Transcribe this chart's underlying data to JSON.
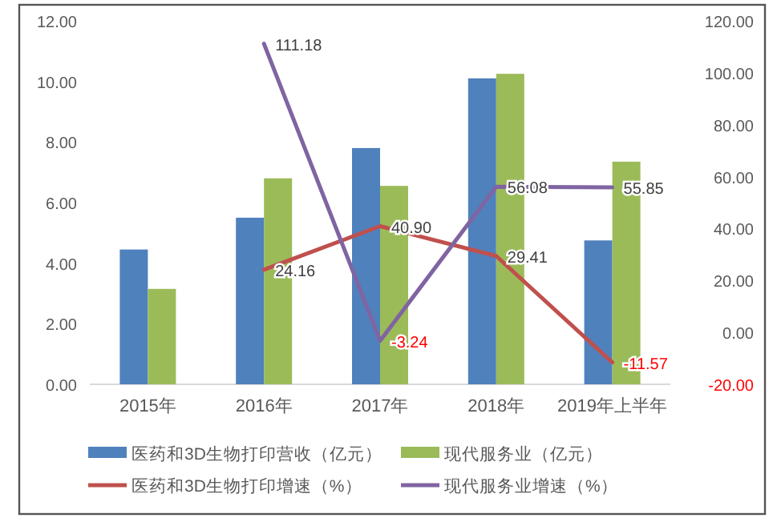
{
  "chart_data": {
    "type": "bar",
    "categories": [
      "2015年",
      "2016年",
      "2017年",
      "2018年",
      "2019年上半年"
    ],
    "series": [
      {
        "name": "医药和3D生物打印营收（亿元）",
        "color": "#4f81bd",
        "values": [
          4.45,
          5.5,
          7.8,
          10.1,
          4.75
        ]
      },
      {
        "name": "现代服务业（亿元）",
        "color": "#9bbb59",
        "values": [
          3.15,
          6.8,
          6.55,
          10.25,
          7.35
        ]
      },
      {
        "name": "医药和3D生物打印增速（%）",
        "type": "line",
        "axis": "y2",
        "color": "#c0504d",
        "values": [
          null,
          24.16,
          40.9,
          29.41,
          -11.57
        ],
        "value_labels": [
          null,
          "24.16",
          "40.90",
          "29.41",
          "-11.57"
        ]
      },
      {
        "name": "现代服务业增速（%）",
        "type": "line",
        "axis": "y2",
        "color": "#8064a2",
        "values": [
          null,
          111.18,
          -3.24,
          56.08,
          55.85
        ],
        "value_labels": [
          null,
          "111.18",
          "-3.24",
          "56.08",
          "55.85"
        ]
      }
    ],
    "ylim": [
      0,
      12
    ],
    "yticks": [
      {
        "value": 0,
        "label": "0.00"
      },
      {
        "value": 2,
        "label": "2.00"
      },
      {
        "value": 4,
        "label": "4.00"
      },
      {
        "value": 6,
        "label": "6.00"
      },
      {
        "value": 8,
        "label": "8.00"
      },
      {
        "value": 10,
        "label": "10.00"
      },
      {
        "value": 12,
        "label": "12.00"
      }
    ],
    "y2lim": [
      -20,
      120
    ],
    "y2ticks": [
      {
        "value": -20,
        "label": "-20.00"
      },
      {
        "value": 0,
        "label": "0.00"
      },
      {
        "value": 20,
        "label": "20.00"
      },
      {
        "value": 40,
        "label": "40.00"
      },
      {
        "value": 60,
        "label": "60.00"
      },
      {
        "value": 80,
        "label": "80.00"
      },
      {
        "value": 100,
        "label": "100.00"
      },
      {
        "value": 120,
        "label": "120.00"
      }
    ],
    "grid": false,
    "legend": "bottom"
  }
}
